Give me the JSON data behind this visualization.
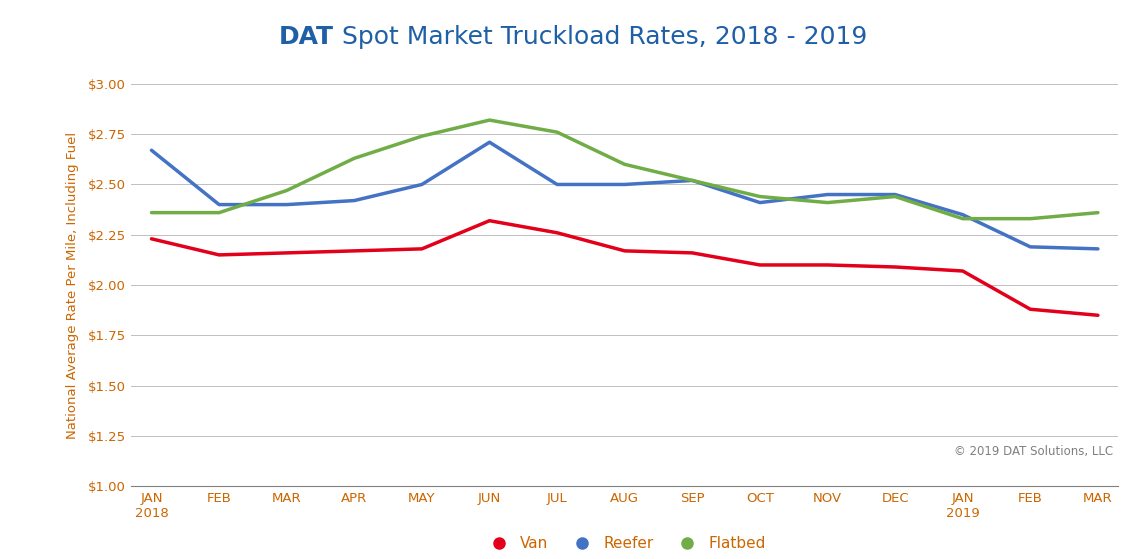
{
  "title_bold": "DAT",
  "title_regular": " Spot Market Truckload Rates, 2018 - 2019",
  "ylabel": "National Average Rate Per Mile, Including Fuel",
  "copyright": "© 2019 DAT Solutions, LLC",
  "x_labels": [
    "JAN\n2018",
    "FEB",
    "MAR",
    "APR",
    "MAY",
    "JUN",
    "JUL",
    "AUG",
    "SEP",
    "OCT",
    "NOV",
    "DEC",
    "JAN\n2019",
    "FEB",
    "MAR"
  ],
  "van": [
    2.23,
    2.15,
    2.16,
    2.17,
    2.18,
    2.32,
    2.26,
    2.17,
    2.16,
    2.1,
    2.1,
    2.09,
    2.07,
    1.88,
    1.85
  ],
  "reefer": [
    2.67,
    2.4,
    2.4,
    2.42,
    2.5,
    2.71,
    2.5,
    2.5,
    2.52,
    2.41,
    2.45,
    2.45,
    2.35,
    2.19,
    2.18
  ],
  "flatbed": [
    2.36,
    2.36,
    2.47,
    2.63,
    2.74,
    2.82,
    2.76,
    2.6,
    2.52,
    2.44,
    2.41,
    2.44,
    2.33,
    2.33,
    2.36
  ],
  "van_color": "#e2001a",
  "reefer_color": "#4472c4",
  "flatbed_color": "#70ad47",
  "ylim_min": 1.0,
  "ylim_max": 3.0,
  "yticks": [
    1.0,
    1.25,
    1.5,
    1.75,
    2.0,
    2.25,
    2.5,
    2.75,
    3.0
  ],
  "line_width": 2.5,
  "title_color": "#1f5fa6",
  "axis_color": "#808080",
  "tick_color": "#cc6600",
  "grid_color": "#c0c0c0",
  "background_color": "#ffffff",
  "copyright_color": "#808080",
  "title_fontsize": 18,
  "tick_fontsize": 9.5,
  "ylabel_fontsize": 9.5,
  "legend_fontsize": 11,
  "copyright_fontsize": 8.5
}
